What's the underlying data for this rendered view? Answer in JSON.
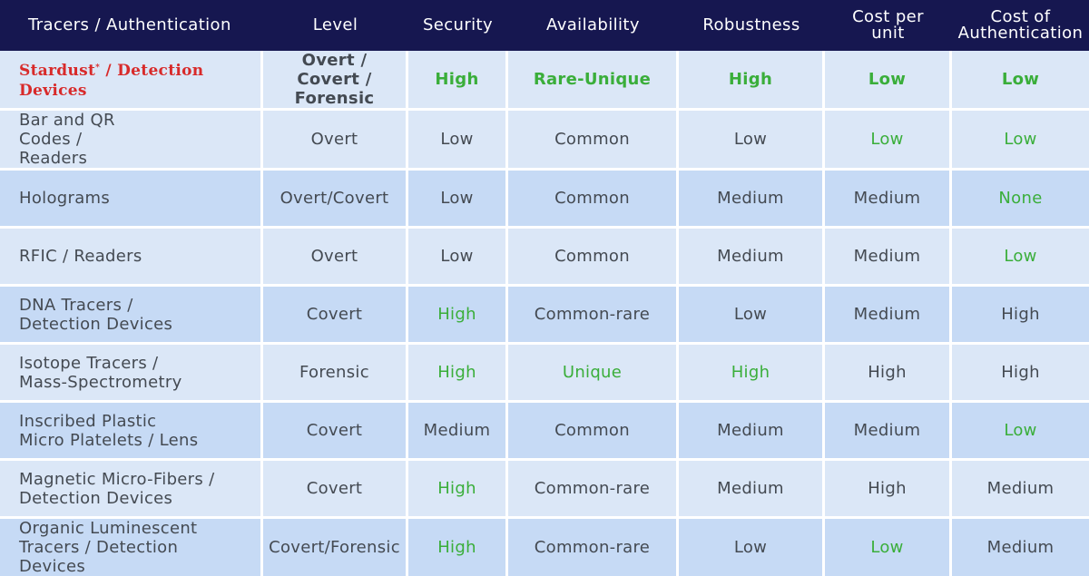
{
  "headers": [
    "Tracers / Authentication",
    "Level",
    "Security",
    "Availability",
    "Robustness",
    "Cost per unit",
    "Cost of Authentication"
  ],
  "highlight_row": {
    "brand": "Stardust",
    "mark": "*",
    "rest": " / Detection Devices",
    "level": "Overt / Covert / Forensic",
    "security": "High",
    "availability": "Rare-Unique",
    "robustness": "High",
    "cost_unit": "Low",
    "cost_auth": "Low"
  },
  "rows": [
    {
      "name": "Bar and QR Codes / Readers",
      "level": "Overt",
      "security": "Low",
      "availability": "Common",
      "robustness": "Low",
      "cost_unit": "Low",
      "cost_auth": "Low"
    },
    {
      "name": "Holograms",
      "level": "Overt/Covert",
      "security": "Low",
      "availability": "Common",
      "robustness": "Medium",
      "cost_unit": "Medium",
      "cost_auth": "None"
    },
    {
      "name": "RFIC / Readers",
      "level": "Overt",
      "security": "Low",
      "availability": "Common",
      "robustness": "Medium",
      "cost_unit": "Medium",
      "cost_auth": "Low"
    },
    {
      "name": "DNA Tracers / Detection Devices",
      "level": "Covert",
      "security": "High",
      "availability": "Common-rare",
      "robustness": "Low",
      "cost_unit": "Medium",
      "cost_auth": "High"
    },
    {
      "name": "Isotope Tracers / Mass-Spectrometry",
      "level": "Forensic",
      "security": "High",
      "availability": "Unique",
      "robustness": "High",
      "cost_unit": "High",
      "cost_auth": "High"
    },
    {
      "name": "Inscribed Plastic Micro Platelets / Lens",
      "level": "Covert",
      "security": "Medium",
      "availability": "Common",
      "robustness": "Medium",
      "cost_unit": "Medium",
      "cost_auth": "Low"
    },
    {
      "name": "Magnetic Micro-Fibers / Detection Devices",
      "level": "Covert",
      "security": "High",
      "availability": "Common-rare",
      "robustness": "Medium",
      "cost_unit": "High",
      "cost_auth": "Medium"
    },
    {
      "name": "Organic Luminescent Tracers / Detection Devices",
      "level": "Covert/Forensic",
      "security": "High",
      "availability": "Common-rare",
      "robustness": "Low",
      "cost_unit": "Low",
      "cost_auth": "Medium"
    }
  ],
  "colors": {
    "header_bg": "#161750",
    "row_light": "#dbe7f7",
    "row_dark": "#c6daf5",
    "green": "#3aae3a",
    "red": "#d82a2a"
  }
}
